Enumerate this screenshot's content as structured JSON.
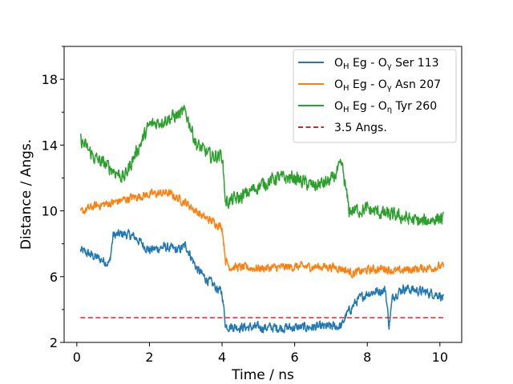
{
  "chart_data": {
    "type": "line",
    "title": "",
    "xlabel": "Time / ns",
    "ylabel": "Distance / Angs.",
    "xlim": [
      -0.35,
      10.6
    ],
    "ylim": [
      2,
      20
    ],
    "xticks": [
      0,
      2,
      4,
      6,
      8,
      10
    ],
    "yticks": [
      2,
      6,
      10,
      14,
      18
    ],
    "yticks_minor": [
      4,
      8,
      12,
      16,
      20
    ],
    "legend_position": "top-right",
    "series": [
      {
        "name": "OH Eg - Oγ Ser 113",
        "legend_parts": [
          [
            "O",
            ""
          ],
          [
            "H",
            "sub"
          ],
          [
            " Eg - O",
            ""
          ],
          [
            "γ",
            "sub"
          ],
          [
            " Ser 113",
            ""
          ]
        ],
        "color": "#1f77b4",
        "style": "solid",
        "x": [
          0.1,
          0.5,
          0.9,
          1.0,
          1.3,
          1.6,
          2.0,
          2.4,
          2.8,
          3.0,
          3.3,
          3.5,
          3.8,
          4.0,
          4.1,
          4.3,
          5.0,
          6.0,
          7.0,
          7.3,
          7.4,
          7.7,
          8.0,
          8.5,
          8.6,
          8.7,
          9.0,
          9.5,
          10.0,
          10.1
        ],
        "y": [
          7.6,
          7.2,
          6.8,
          8.5,
          8.6,
          8.4,
          7.6,
          7.8,
          7.6,
          7.9,
          6.5,
          6.0,
          5.4,
          5.0,
          3.0,
          2.95,
          2.9,
          2.9,
          2.95,
          3.0,
          3.6,
          4.5,
          5.0,
          5.2,
          3.0,
          4.8,
          5.3,
          5.1,
          4.9,
          4.6
        ],
        "noise": 0.45
      },
      {
        "name": "OH Eg - Oγ Asn 207",
        "legend_parts": [
          [
            "O",
            ""
          ],
          [
            "H",
            "sub"
          ],
          [
            " Eg - O",
            ""
          ],
          [
            "γ",
            "sub"
          ],
          [
            " Asn 207",
            ""
          ]
        ],
        "color": "#ff7f0e",
        "style": "solid",
        "x": [
          0.1,
          0.5,
          1.0,
          1.5,
          2.0,
          2.5,
          3.0,
          3.5,
          3.8,
          4.0,
          4.1,
          4.2,
          5.0,
          6.0,
          7.0,
          7.3,
          7.6,
          8.0,
          8.5,
          8.8,
          9.0,
          9.5,
          10.0,
          10.1
        ],
        "y": [
          9.9,
          10.3,
          10.5,
          10.8,
          11.0,
          11.1,
          10.5,
          9.6,
          9.3,
          9.0,
          7.0,
          6.6,
          6.5,
          6.6,
          6.6,
          6.5,
          6.2,
          6.4,
          6.5,
          6.3,
          6.4,
          6.5,
          6.6,
          6.6
        ],
        "noise": 0.4
      },
      {
        "name": "OH Eg - Oη Tyr 260",
        "legend_parts": [
          [
            "O",
            ""
          ],
          [
            "H",
            "sub"
          ],
          [
            " Eg - O",
            ""
          ],
          [
            "η",
            "sub"
          ],
          [
            " Tyr 260",
            ""
          ]
        ],
        "color": "#2ca02c",
        "style": "solid",
        "x": [
          0.1,
          0.5,
          1.0,
          1.3,
          1.6,
          2.0,
          2.5,
          3.0,
          3.3,
          3.7,
          4.0,
          4.1,
          4.5,
          5.0,
          5.5,
          6.0,
          6.5,
          7.0,
          7.3,
          7.5,
          8.0,
          8.5,
          9.0,
          9.5,
          10.0,
          10.1
        ],
        "y": [
          14.3,
          13.2,
          12.5,
          12.0,
          13.4,
          15.2,
          15.6,
          16.0,
          14.0,
          13.3,
          13.4,
          10.5,
          10.8,
          11.5,
          12.0,
          12.0,
          11.5,
          11.8,
          12.8,
          10.0,
          10.1,
          9.8,
          9.6,
          9.3,
          9.6,
          9.4
        ],
        "noise": 0.65
      },
      {
        "name": "3.5 Angs.",
        "legend_parts": [
          [
            "3.5 Angs.",
            ""
          ]
        ],
        "color": "#d62728",
        "style": "dashed",
        "x": [
          0.1,
          10.1
        ],
        "y": [
          3.5,
          3.5
        ],
        "noise": 0
      }
    ]
  }
}
